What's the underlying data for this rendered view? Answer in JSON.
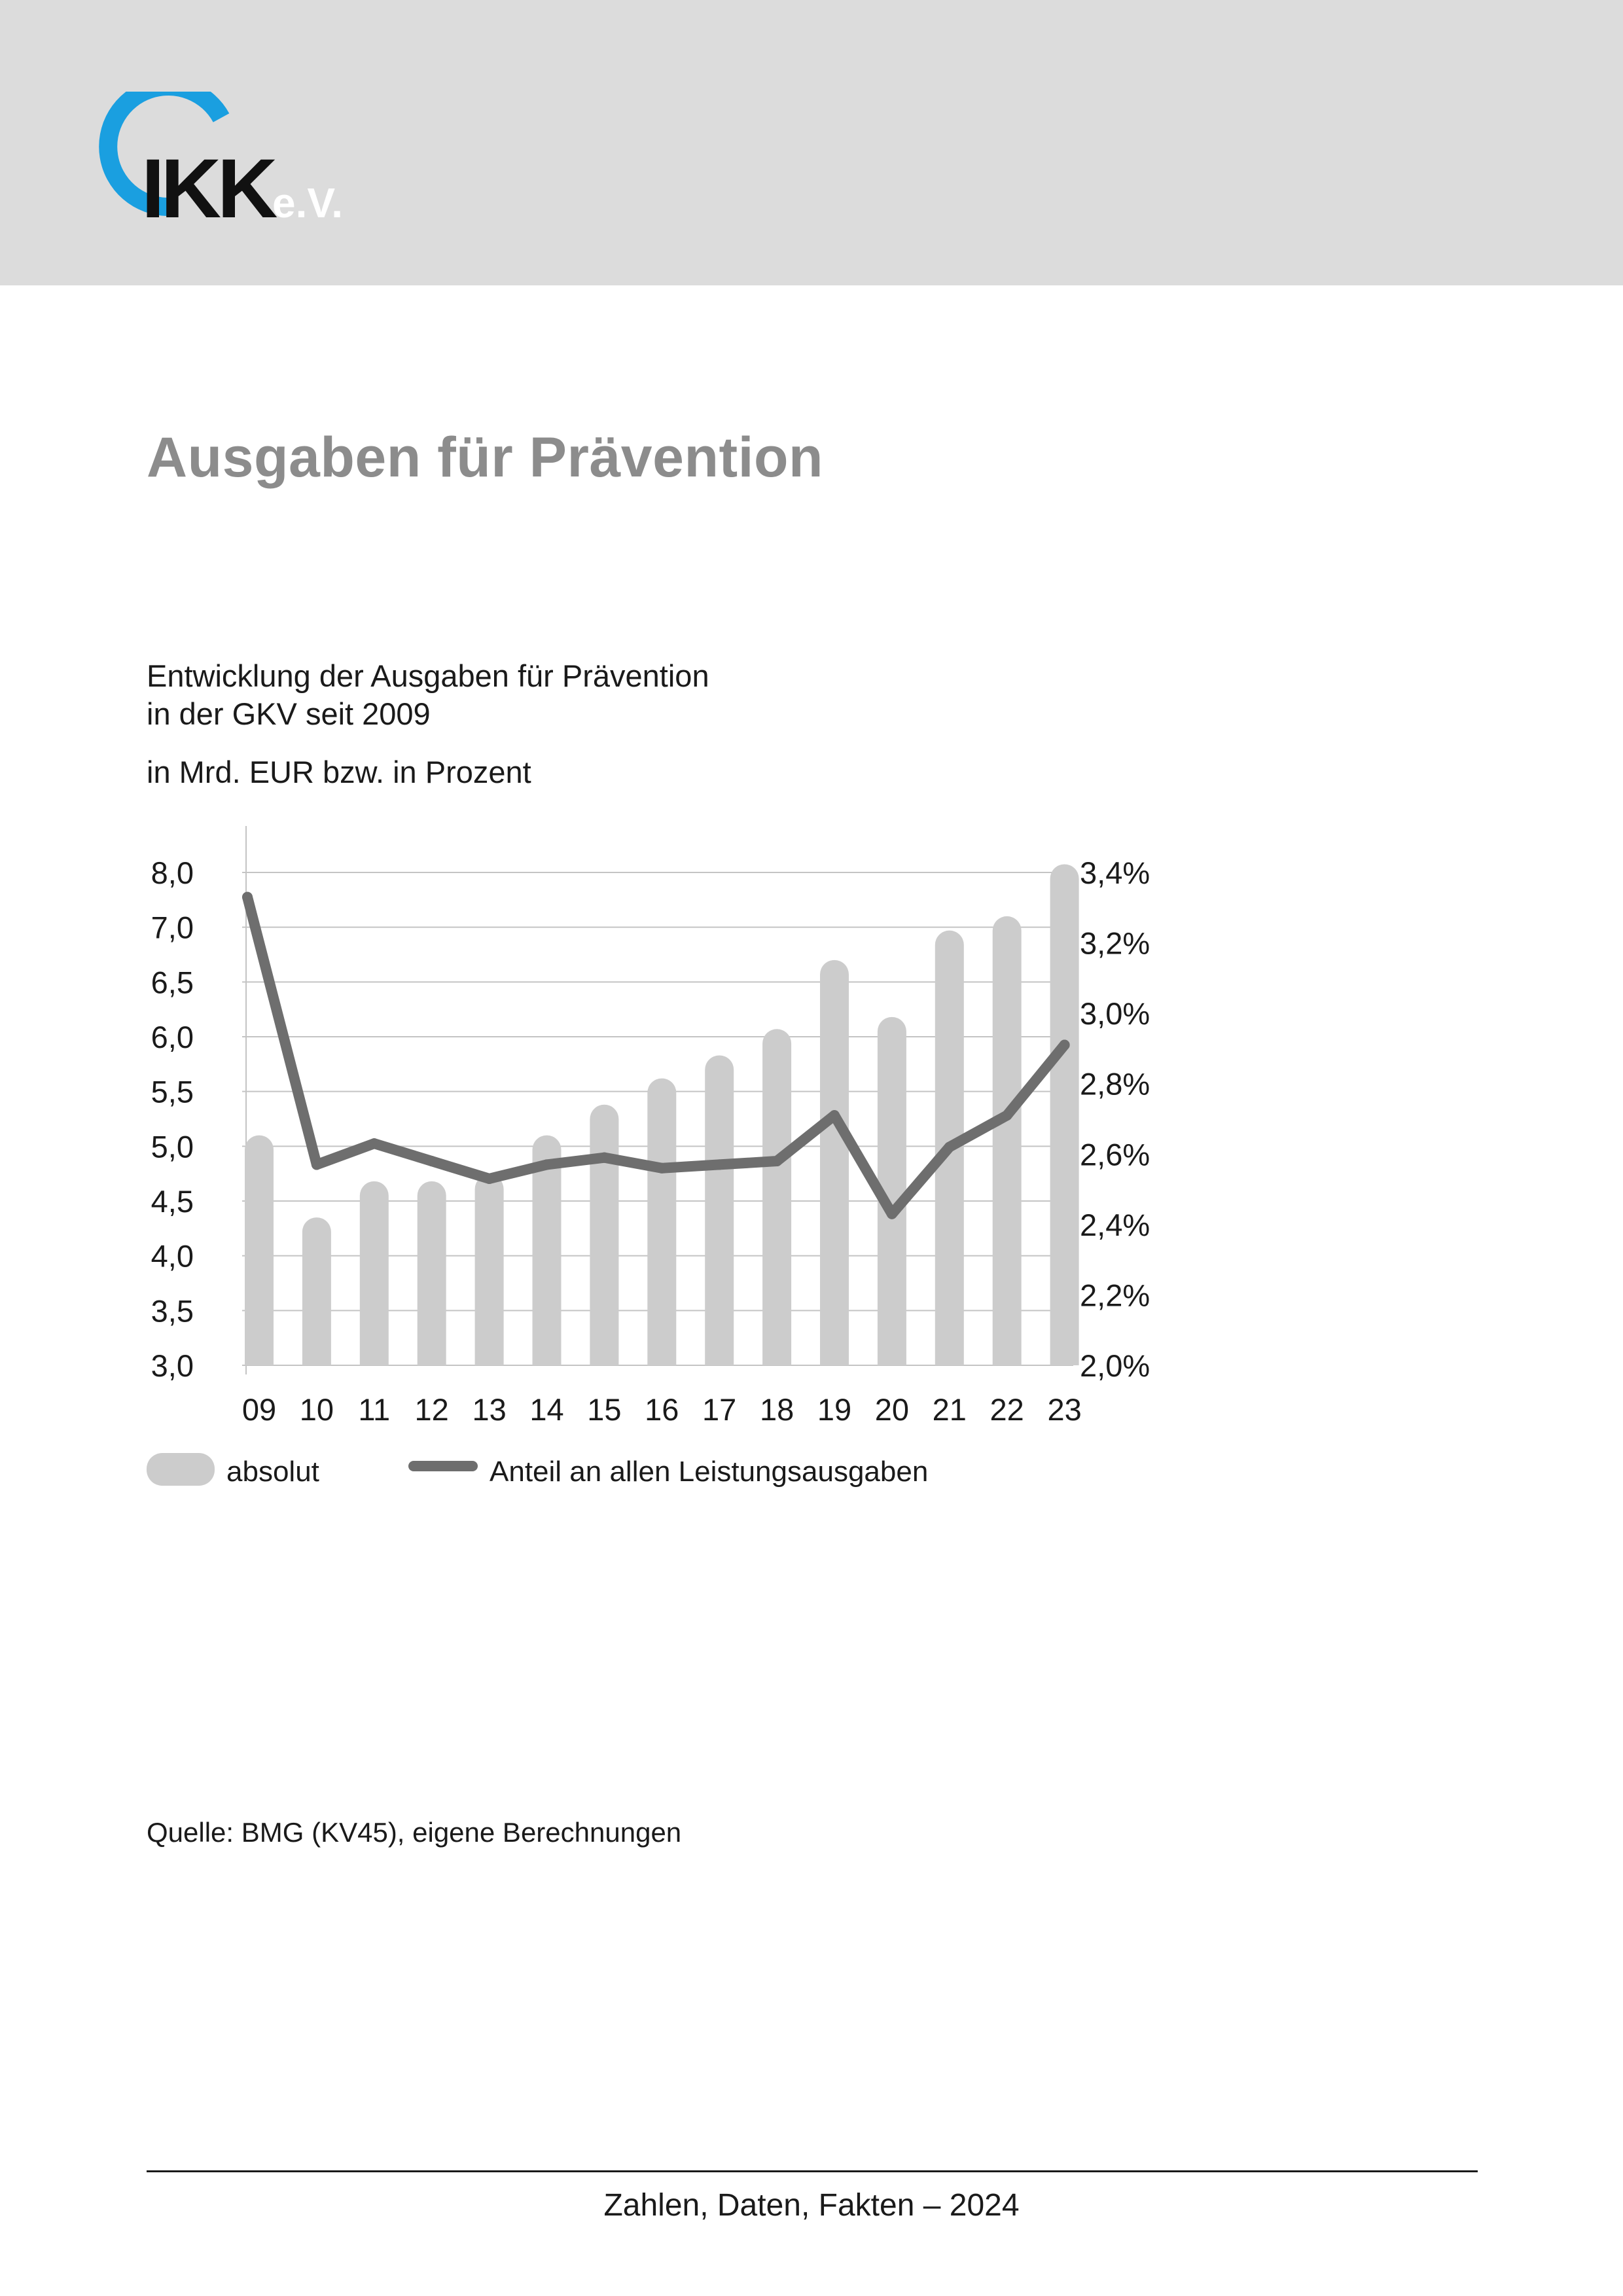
{
  "header": {
    "logo_text": "IKK",
    "logo_suffix": "e.V.",
    "colors": {
      "band": "#dcdcdc",
      "logo_arc": "#1a9fe0",
      "logo_text": "#111111",
      "logo_suffix": "#ffffff"
    }
  },
  "title": "Ausgaben für Prävention",
  "subtitle_lines": [
    "Entwicklung der Ausgaben für Prävention",
    "in der GKV seit 2009"
  ],
  "unit_note": "in Mrd. EUR bzw. in Prozent",
  "source_note": "Quelle: BMG (KV45), eigene Berechnungen",
  "footer": "Zahlen, Daten, Fakten – 2024",
  "chart_data": {
    "type": "bar",
    "title": "Entwicklung der Ausgaben für Prävention in der GKV seit 2009",
    "categories": [
      "09",
      "10",
      "11",
      "12",
      "13",
      "14",
      "15",
      "16",
      "17",
      "18",
      "19",
      "20",
      "21",
      "22",
      "23"
    ],
    "left_axis": {
      "ticks": [
        3.0,
        3.5,
        4.0,
        4.5,
        5.0,
        5.5,
        6.0,
        6.5,
        7.0,
        8.0
      ],
      "tick_labels": [
        "3,0",
        "3,5",
        "4,0",
        "4,5",
        "5,0",
        "5,5",
        "6,0",
        "6,5",
        "7,0",
        "8,0"
      ]
    },
    "right_axis": {
      "ylim": [
        2.0,
        3.4
      ],
      "ticks": [
        2.0,
        2.2,
        2.4,
        2.6,
        2.8,
        3.0,
        3.2,
        3.4
      ],
      "tick_labels": [
        "2,0%",
        "2,2%",
        "2,4%",
        "2,6%",
        "2,8%",
        "3,0%",
        "3,2%",
        "3,4%"
      ]
    },
    "series": [
      {
        "name": "absolut",
        "type": "bar",
        "axis": "left",
        "color": "#cccccc",
        "values": [
          5.1,
          4.35,
          4.68,
          4.68,
          4.74,
          5.1,
          5.38,
          5.62,
          5.83,
          6.07,
          6.7,
          6.18,
          6.97,
          7.2,
          8.15
        ]
      },
      {
        "name": "Anteil an allen Leistungsausgaben",
        "type": "line",
        "axis": "right",
        "color": "#6e6e6e",
        "values": [
          3.33,
          2.57,
          2.63,
          2.58,
          2.53,
          2.57,
          2.59,
          2.56,
          2.57,
          2.58,
          2.71,
          2.43,
          2.62,
          2.71,
          2.91
        ]
      }
    ],
    "grid": true,
    "legend": "bottom-left"
  }
}
